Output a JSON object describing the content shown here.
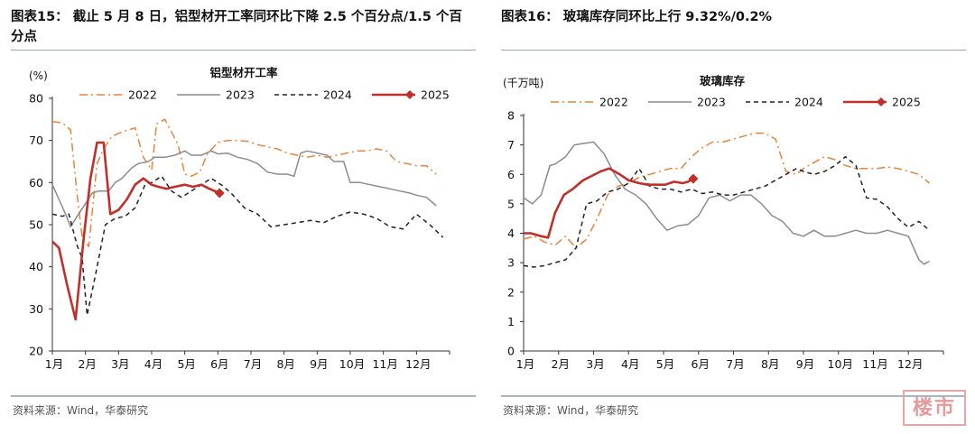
{
  "left": {
    "title": "图表15：  截止 5 月 8 日，铝型材开工率同环比下降 2.5 个百分点/1.5 个百分点",
    "source": "资料来源：Wind，华泰研究"
  },
  "right": {
    "title": "图表16：  玻璃库存同环比上行 9.32%/0.2%",
    "source": "资料来源：Wind，华泰研究"
  },
  "stamp_text": "楼市",
  "chart_data": [
    {
      "type": "line",
      "title": "铝型材开工率",
      "unit_label": "(%)",
      "categories": [
        "1月",
        "2月",
        "3月",
        "4月",
        "5月",
        "6月",
        "7月",
        "8月",
        "9月",
        "10月",
        "11月",
        "12月"
      ],
      "ylim": [
        20,
        80
      ],
      "yticks": [
        20,
        30,
        40,
        50,
        60,
        70,
        80
      ],
      "grid": false,
      "legend_position": "top",
      "series": [
        {
          "name": "2022",
          "color": "#e8833a",
          "style": "dashdot",
          "x": [
            0.0,
            0.3,
            0.55,
            0.75,
            0.9,
            1.1,
            1.35,
            1.55,
            1.8,
            2.1,
            2.5,
            2.75,
            3.0,
            3.15,
            3.4,
            3.6,
            3.8,
            4.0,
            4.2,
            4.45,
            4.7,
            5.0,
            5.3,
            5.6,
            5.9,
            6.2,
            6.5,
            6.8,
            7.1,
            7.4,
            7.7,
            8.0,
            8.3,
            8.6,
            8.9,
            9.2,
            9.5,
            9.8,
            10.1,
            10.4,
            10.7,
            11.0,
            11.3,
            11.6
          ],
          "y": [
            74.5,
            74.2,
            72.5,
            57.0,
            47.0,
            44.8,
            64.5,
            68.0,
            71.0,
            72.0,
            73.0,
            66.0,
            63.0,
            74.0,
            75.0,
            72.0,
            69.0,
            62.0,
            61.5,
            62.5,
            67.0,
            69.5,
            70.0,
            70.0,
            69.8,
            69.0,
            68.5,
            68.0,
            67.0,
            66.5,
            66.0,
            66.5,
            66.0,
            66.5,
            67.0,
            67.5,
            67.5,
            68.0,
            67.5,
            65.0,
            64.5,
            64.0,
            64.0,
            62.0
          ]
        },
        {
          "name": "2023",
          "color": "#8c8c8c",
          "style": "solid",
          "x": [
            0.0,
            0.2,
            0.4,
            0.55,
            0.75,
            1.0,
            1.2,
            1.4,
            1.7,
            1.9,
            2.1,
            2.4,
            2.6,
            2.9,
            3.1,
            3.4,
            3.7,
            4.0,
            4.2,
            4.5,
            4.8,
            5.0,
            5.3,
            5.6,
            5.9,
            6.2,
            6.5,
            6.8,
            7.1,
            7.3,
            7.5,
            7.7,
            8.0,
            8.3,
            8.5,
            8.8,
            9.0,
            9.3,
            9.6,
            9.9,
            10.2,
            10.5,
            10.8,
            11.0,
            11.3,
            11.6
          ],
          "y": [
            59.5,
            56.0,
            52.5,
            49.5,
            52.0,
            55.0,
            57.5,
            58.0,
            58.0,
            60.0,
            61.0,
            63.5,
            64.5,
            65.0,
            66.0,
            66.0,
            66.5,
            67.5,
            66.5,
            66.5,
            67.5,
            66.8,
            67.0,
            66.0,
            65.5,
            64.5,
            62.5,
            62.0,
            62.0,
            61.5,
            67.0,
            67.5,
            67.0,
            66.5,
            65.0,
            65.0,
            60.0,
            60.0,
            59.5,
            59.0,
            58.5,
            58.0,
            57.5,
            57.0,
            56.5,
            54.5
          ]
        },
        {
          "name": "2024",
          "color": "#222222",
          "style": "dashed",
          "x": [
            0.0,
            0.3,
            0.5,
            0.75,
            0.9,
            1.05,
            1.3,
            1.6,
            1.9,
            2.2,
            2.5,
            2.8,
            3.0,
            3.3,
            3.6,
            3.9,
            4.2,
            4.5,
            4.8,
            5.1,
            5.4,
            5.8,
            6.2,
            6.6,
            7.0,
            7.4,
            7.8,
            8.2,
            8.6,
            9.0,
            9.4,
            9.8,
            10.2,
            10.6,
            11.0,
            11.4,
            11.8
          ],
          "y": [
            52.5,
            52.0,
            52.5,
            45.0,
            42.0,
            28.5,
            38.0,
            50.0,
            51.5,
            52.0,
            54.0,
            59.5,
            60.0,
            61.5,
            58.0,
            56.5,
            58.0,
            59.5,
            61.0,
            59.5,
            57.5,
            54.0,
            52.5,
            49.5,
            50.0,
            50.5,
            51.0,
            50.5,
            52.0,
            53.0,
            52.5,
            51.5,
            49.5,
            49.0,
            52.5,
            50.0,
            47.0
          ]
        },
        {
          "name": "2025",
          "color": "#c0302b",
          "style": "solid",
          "marker": "diamond",
          "x": [
            0.0,
            0.2,
            0.45,
            0.7,
            0.95,
            1.15,
            1.35,
            1.55,
            1.75,
            2.0,
            2.25,
            2.5,
            2.75,
            3.0,
            3.2,
            3.45,
            3.7,
            4.0,
            4.25,
            4.5,
            4.75,
            5.05
          ],
          "y": [
            46.0,
            44.5,
            35.5,
            27.5,
            47.0,
            61.0,
            69.5,
            69.5,
            52.5,
            53.5,
            56.0,
            59.5,
            61.0,
            59.5,
            59.0,
            58.5,
            59.0,
            59.5,
            59.0,
            59.5,
            58.5,
            57.5
          ]
        }
      ]
    },
    {
      "type": "line",
      "title": "玻璃库存",
      "unit_label": "(千万吨)",
      "categories": [
        "1月",
        "2月",
        "3月",
        "4月",
        "5月",
        "6月",
        "7月",
        "8月",
        "9月",
        "10月",
        "11月",
        "12月"
      ],
      "ylim": [
        0,
        8
      ],
      "yticks": [
        0,
        1,
        2,
        3,
        4,
        5,
        6,
        7,
        8
      ],
      "grid": false,
      "legend_position": "top",
      "series": [
        {
          "name": "2022",
          "color": "#e8833a",
          "style": "dashdot",
          "x": [
            0.0,
            0.3,
            0.6,
            0.9,
            1.2,
            1.5,
            1.8,
            2.1,
            2.4,
            2.7,
            3.0,
            3.3,
            3.6,
            3.9,
            4.2,
            4.5,
            4.8,
            5.1,
            5.4,
            5.7,
            6.0,
            6.3,
            6.6,
            6.9,
            7.2,
            7.5,
            7.8,
            8.0,
            8.3,
            8.6,
            8.9,
            9.2,
            9.5,
            9.8,
            10.1,
            10.4,
            10.7,
            11.0,
            11.3,
            11.6
          ],
          "y": [
            3.8,
            3.9,
            3.7,
            3.6,
            3.9,
            3.5,
            3.8,
            4.5,
            5.3,
            5.6,
            5.7,
            5.9,
            6.0,
            6.1,
            6.2,
            6.2,
            6.6,
            6.9,
            7.1,
            7.1,
            7.2,
            7.3,
            7.4,
            7.4,
            7.2,
            6.1,
            6.0,
            6.2,
            6.4,
            6.6,
            6.5,
            6.3,
            6.2,
            6.2,
            6.2,
            6.25,
            6.2,
            6.1,
            6.0,
            5.7
          ]
        },
        {
          "name": "2023",
          "color": "#8c8c8c",
          "style": "solid",
          "x": [
            0.0,
            0.25,
            0.5,
            0.75,
            0.9,
            1.2,
            1.45,
            1.7,
            2.0,
            2.3,
            2.6,
            2.9,
            3.2,
            3.5,
            3.8,
            4.1,
            4.4,
            4.7,
            5.0,
            5.3,
            5.6,
            5.9,
            6.2,
            6.5,
            6.8,
            7.1,
            7.4,
            7.7,
            8.0,
            8.3,
            8.6,
            8.9,
            9.2,
            9.5,
            9.8,
            10.1,
            10.4,
            10.7,
            11.0,
            11.3,
            11.45,
            11.6
          ],
          "y": [
            5.2,
            5.0,
            5.3,
            6.3,
            6.35,
            6.6,
            7.0,
            7.05,
            7.1,
            6.7,
            6.0,
            5.5,
            5.3,
            5.0,
            4.5,
            4.1,
            4.25,
            4.3,
            4.6,
            5.2,
            5.3,
            5.1,
            5.3,
            5.3,
            5.0,
            4.6,
            4.4,
            4.0,
            3.9,
            4.1,
            3.9,
            3.9,
            4.0,
            4.1,
            4.0,
            4.0,
            4.1,
            4.0,
            3.9,
            3.1,
            2.95,
            3.05
          ]
        },
        {
          "name": "2024",
          "color": "#222222",
          "style": "dashed",
          "x": [
            0.0,
            0.3,
            0.6,
            0.9,
            1.2,
            1.5,
            1.8,
            2.1,
            2.4,
            2.7,
            3.0,
            3.3,
            3.6,
            3.9,
            4.2,
            4.5,
            4.8,
            5.1,
            5.4,
            5.7,
            6.0,
            6.3,
            6.6,
            6.9,
            7.2,
            7.5,
            7.8,
            8.0,
            8.3,
            8.6,
            8.9,
            9.2,
            9.5,
            9.8,
            10.1,
            10.4,
            10.7,
            11.0,
            11.3,
            11.6
          ],
          "y": [
            2.9,
            2.85,
            2.9,
            3.0,
            3.1,
            3.5,
            5.0,
            5.1,
            5.4,
            5.5,
            5.7,
            6.2,
            5.6,
            5.5,
            5.5,
            5.4,
            5.5,
            5.35,
            5.4,
            5.3,
            5.3,
            5.4,
            5.5,
            5.6,
            5.8,
            6.0,
            6.2,
            6.1,
            6.0,
            6.1,
            6.3,
            6.6,
            6.3,
            5.2,
            5.15,
            4.9,
            4.5,
            4.2,
            4.4,
            4.1
          ]
        },
        {
          "name": "2025",
          "color": "#c0302b",
          "style": "solid",
          "marker": "diamond",
          "x": [
            0.0,
            0.2,
            0.5,
            0.7,
            0.9,
            1.15,
            1.4,
            1.7,
            1.95,
            2.2,
            2.45,
            2.75,
            3.0,
            3.3,
            3.55,
            3.8,
            4.05,
            4.3,
            4.55,
            4.7,
            4.85
          ],
          "y": [
            4.0,
            4.0,
            3.9,
            3.85,
            4.7,
            5.3,
            5.5,
            5.8,
            5.95,
            6.1,
            6.2,
            6.0,
            5.8,
            5.7,
            5.65,
            5.65,
            5.65,
            5.75,
            5.7,
            5.75,
            5.85
          ]
        }
      ]
    }
  ]
}
